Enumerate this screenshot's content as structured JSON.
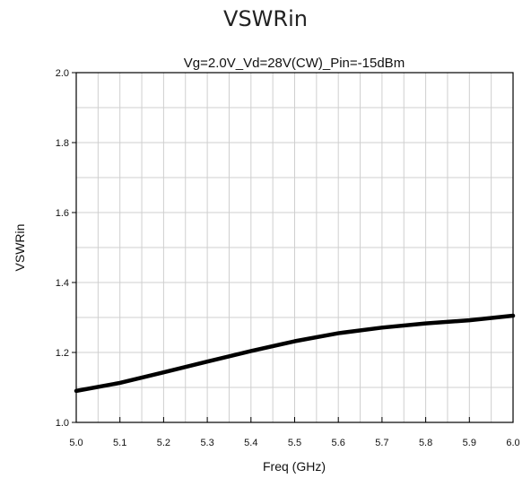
{
  "header": {
    "title": "VSWRin"
  },
  "chart_data": {
    "type": "line",
    "title": "Vg=2.0V_Vd=28V(CW)_Pin=-15dBm",
    "xlabel": "Freq (GHz)",
    "ylabel": "VSWRin",
    "xlim": [
      5.0,
      6.0
    ],
    "ylim": [
      1.0,
      2.0
    ],
    "x_ticks": [
      "5.0",
      "5.1",
      "5.2",
      "5.3",
      "5.4",
      "5.5",
      "5.6",
      "5.7",
      "5.8",
      "5.9",
      "6.0"
    ],
    "y_ticks": [
      "1.0",
      "1.2",
      "1.4",
      "1.6",
      "1.8",
      "2.0"
    ],
    "grid": true,
    "series": [
      {
        "color": "#000000",
        "x": [
          5.0,
          5.1,
          5.2,
          5.3,
          5.4,
          5.5,
          5.6,
          5.7,
          5.8,
          5.9,
          6.0
        ],
        "y": [
          1.09,
          1.113,
          1.143,
          1.174,
          1.204,
          1.232,
          1.255,
          1.271,
          1.283,
          1.292,
          1.305
        ]
      }
    ]
  }
}
